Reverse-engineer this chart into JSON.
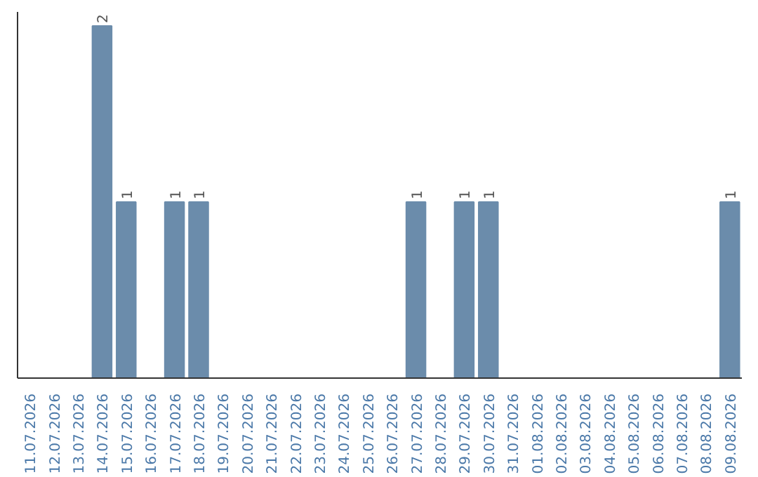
{
  "chart_data": {
    "type": "bar",
    "categories": [
      "11.07.2026",
      "12.07.2026",
      "13.07.2026",
      "14.07.2026",
      "15.07.2026",
      "16.07.2026",
      "17.07.2026",
      "18.07.2026",
      "19.07.2026",
      "20.07.2026",
      "21.07.2026",
      "22.07.2026",
      "23.07.2026",
      "24.07.2026",
      "25.07.2026",
      "26.07.2026",
      "27.07.2026",
      "28.07.2026",
      "29.07.2026",
      "30.07.2026",
      "31.07.2026",
      "01.08.2026",
      "02.08.2026",
      "03.08.2026",
      "04.08.2026",
      "05.08.2026",
      "06.08.2026",
      "07.08.2026",
      "08.08.2026",
      "09.08.2026"
    ],
    "values": [
      0,
      0,
      0,
      2,
      1,
      0,
      1,
      1,
      0,
      0,
      0,
      0,
      0,
      0,
      0,
      0,
      1,
      0,
      1,
      1,
      0,
      0,
      0,
      0,
      0,
      0,
      0,
      0,
      0,
      1
    ],
    "value_labels": [
      null,
      null,
      null,
      "2",
      "1",
      null,
      "1",
      "1",
      null,
      null,
      null,
      null,
      null,
      null,
      null,
      null,
      "1",
      null,
      "1",
      "1",
      null,
      null,
      null,
      null,
      null,
      null,
      null,
      null,
      null,
      "1"
    ],
    "color": "#6b8cab"
  }
}
